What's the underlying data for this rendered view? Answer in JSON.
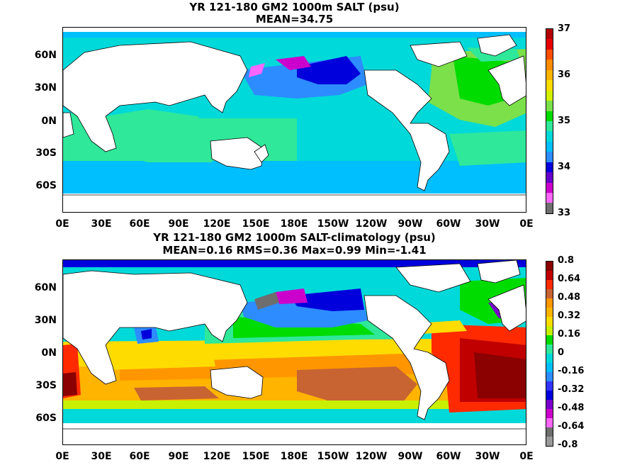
{
  "panel_top": {
    "title_line1": "YR 121-180 GM2 1000m SALT (psu)",
    "title_line2": "MEAN=34.75",
    "colorbar_labels": [
      "37",
      "36",
      "35",
      "34",
      "33"
    ],
    "colorbar_colors": [
      "#b30000",
      "#e60000",
      "#ff4d00",
      "#ff8c00",
      "#ffb400",
      "#ffdc00",
      "#d2f000",
      "#7be04a",
      "#00dc00",
      "#2fe89a",
      "#00d9d9",
      "#00bfff",
      "#2d8cff",
      "#0000dc",
      "#6600cc",
      "#cc00cc",
      "#ff66ff",
      "#6e6e6e"
    ]
  },
  "panel_bottom": {
    "title_line1": "YR 121-180 GM2 1000m SALT-climatology (psu)",
    "title_line2": "MEAN=0.16   RMS=0.36   Max=0.99   Min=-1.41",
    "colorbar_labels": [
      "0.8",
      "0.64",
      "0.48",
      "0.32",
      "0.16",
      "0",
      "-0.16",
      "-0.32",
      "-0.48",
      "-0.64",
      "-0.8"
    ],
    "colorbar_colors": [
      "#8b0000",
      "#c00000",
      "#ff2a00",
      "#c86432",
      "#ff9600",
      "#ffb400",
      "#ffdc00",
      "#c8f000",
      "#00dc00",
      "#2fe89a",
      "#00d9d9",
      "#00bfff",
      "#2d8cff",
      "#3232ff",
      "#0000dc",
      "#7a00cc",
      "#cc00cc",
      "#ff66ff",
      "#6e6e6e",
      "#9a9a9a"
    ]
  },
  "axes": {
    "lat_labels": [
      "60N",
      "30N",
      "0N",
      "30S",
      "60S"
    ],
    "lon_labels": [
      "0E",
      "30E",
      "60E",
      "90E",
      "120E",
      "150E",
      "180E",
      "150W",
      "120W",
      "90W",
      "60W",
      "30W",
      "0E"
    ]
  }
}
